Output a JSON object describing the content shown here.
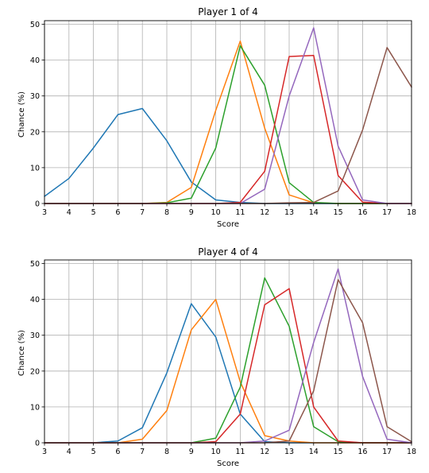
{
  "colors": [
    "#1f77b4",
    "#ff7f0e",
    "#2ca02c",
    "#d62728",
    "#9467bd",
    "#8c564b"
  ],
  "chart_data": [
    {
      "type": "line",
      "title": "Player 1 of 4",
      "xlabel": "Score",
      "ylabel": "Chance (%)",
      "xlim": [
        3,
        18
      ],
      "ylim": [
        0,
        51
      ],
      "xticks": [
        3,
        4,
        5,
        6,
        7,
        8,
        9,
        10,
        11,
        12,
        13,
        14,
        15,
        16,
        17,
        18
      ],
      "yticks": [
        0,
        10,
        20,
        30,
        40,
        50
      ],
      "grid": true,
      "x": [
        3,
        4,
        5,
        6,
        7,
        8,
        9,
        10,
        11,
        12,
        13,
        14,
        15,
        16,
        17,
        18
      ],
      "series": [
        {
          "color": "#1f77b4",
          "values": [
            2,
            7,
            15.5,
            24.8,
            26.5,
            17.5,
            6,
            1,
            0.3,
            0,
            0,
            0,
            0,
            0,
            0,
            0
          ]
        },
        {
          "color": "#ff7f0e",
          "values": [
            0,
            0,
            0,
            0,
            0,
            0.3,
            4.5,
            26,
            45.3,
            21,
            2.4,
            0.2,
            0,
            0,
            0,
            0
          ]
        },
        {
          "color": "#2ca02c",
          "values": [
            0,
            0,
            0,
            0,
            0,
            0.2,
            1.5,
            15.5,
            44,
            33,
            5.8,
            0.3,
            0,
            0,
            0,
            0
          ]
        },
        {
          "color": "#d62728",
          "values": [
            0,
            0,
            0,
            0,
            0,
            0,
            0,
            0,
            0.3,
            9,
            41,
            41.3,
            7.8,
            0.4,
            0,
            0
          ]
        },
        {
          "color": "#9467bd",
          "values": [
            0,
            0,
            0,
            0,
            0,
            0,
            0,
            0,
            0,
            4,
            30,
            49,
            16,
            1,
            0,
            0
          ]
        },
        {
          "color": "#8c564b",
          "values": [
            0,
            0,
            0,
            0,
            0,
            0,
            0,
            0,
            0,
            0,
            0.2,
            0.3,
            3.5,
            20.5,
            43.5,
            32.5
          ]
        }
      ]
    },
    {
      "type": "line",
      "title": "Player 4 of 4",
      "xlabel": "Score",
      "ylabel": "Chance (%)",
      "xlim": [
        3,
        18
      ],
      "ylim": [
        0,
        51
      ],
      "xticks": [
        3,
        4,
        5,
        6,
        7,
        8,
        9,
        10,
        11,
        12,
        13,
        14,
        15,
        16,
        17,
        18
      ],
      "yticks": [
        0,
        10,
        20,
        30,
        40,
        50
      ],
      "grid": true,
      "x": [
        3,
        4,
        5,
        6,
        7,
        8,
        9,
        10,
        11,
        12,
        13,
        14,
        15,
        16,
        17,
        18
      ],
      "series": [
        {
          "color": "#1f77b4",
          "values": [
            0,
            0,
            0,
            0.5,
            4.2,
            19.5,
            38.8,
            29.5,
            8,
            0.3,
            0,
            0,
            0,
            0,
            0,
            0
          ]
        },
        {
          "color": "#ff7f0e",
          "values": [
            0,
            0,
            0,
            0,
            1,
            9,
            31.5,
            40,
            17,
            2,
            0.5,
            0,
            0,
            0,
            0,
            0
          ]
        },
        {
          "color": "#2ca02c",
          "values": [
            0,
            0,
            0,
            0,
            0,
            0,
            0,
            1.3,
            15.5,
            46,
            32.5,
            4.5,
            0.3,
            0,
            0,
            0
          ]
        },
        {
          "color": "#d62728",
          "values": [
            0,
            0,
            0,
            0,
            0,
            0,
            0,
            0.3,
            8,
            38.5,
            43,
            10,
            0.5,
            0,
            0,
            0
          ]
        },
        {
          "color": "#9467bd",
          "values": [
            0,
            0,
            0,
            0,
            0,
            0,
            0,
            0,
            0,
            0.5,
            3.5,
            28,
            48.5,
            18.5,
            1,
            0
          ]
        },
        {
          "color": "#8c564b",
          "values": [
            0,
            0,
            0,
            0,
            0,
            0,
            0,
            0,
            0,
            0,
            0.5,
            14.5,
            45.5,
            33.5,
            4.5,
            0.3
          ]
        }
      ]
    }
  ]
}
